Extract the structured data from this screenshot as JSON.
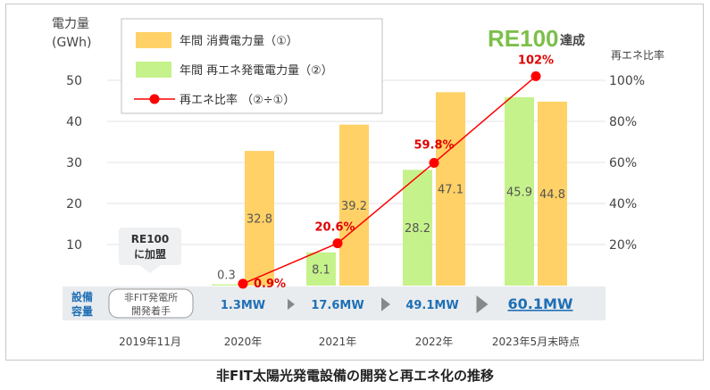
{
  "caption": "非FIT太陽光発電設備の開発と再エネ化の推移",
  "badge": {
    "logo": "RE100",
    "suffix": "達成"
  },
  "callout": {
    "line1": "RE100",
    "line2": "に加盟"
  },
  "legend": {
    "items": [
      {
        "label": "年間 消費電力量（①）",
        "kind": "bar",
        "color": "#ffd166"
      },
      {
        "label": "年間 再エネ発電電力量（②）",
        "kind": "bar",
        "color": "#c6f28c"
      },
      {
        "label": "再エネ比率 （②÷①）",
        "kind": "line",
        "color": "#ff0000"
      }
    ]
  },
  "capacity_strip": {
    "title_line1": "設備",
    "title_line2": "容量",
    "start_line1": "非FIT発電所",
    "start_line2": "開発着手",
    "values": [
      "1.3MW",
      "17.6MW",
      "49.1MW",
      "60.1MW"
    ]
  },
  "chart_data": {
    "type": "bar",
    "categories": [
      "2019年11月",
      "2020年",
      "2021年",
      "2022年",
      "2023年5月末時点"
    ],
    "left_axis": {
      "label_line1": "電力量",
      "label_line2": "(GWh)",
      "ylim": [
        0,
        50
      ],
      "ticks": [
        "10",
        "20",
        "30",
        "40",
        "50"
      ]
    },
    "right_axis": {
      "label": "再エネ比率",
      "ylim": [
        0,
        1.0
      ],
      "ticks": [
        "20%",
        "40%",
        "60%",
        "80%",
        "100%"
      ]
    },
    "series": [
      {
        "name": "年間 消費電力量（①）",
        "kind": "bar",
        "color": "#ffd166",
        "values": [
          null,
          32.8,
          39.2,
          47.1,
          44.8
        ],
        "labels": [
          null,
          "32.8",
          "39.2",
          "47.1",
          "44.8"
        ]
      },
      {
        "name": "年間 再エネ発電電力量（②）",
        "kind": "bar",
        "color": "#c6f28c",
        "values": [
          null,
          0.3,
          8.1,
          28.2,
          45.9
        ],
        "labels": [
          null,
          "0.3",
          "8.1",
          "28.2",
          "45.9"
        ]
      },
      {
        "name": "再エネ比率 （②÷①）",
        "kind": "line",
        "color": "#ff0000",
        "values": [
          null,
          0.009,
          0.206,
          0.598,
          1.02
        ],
        "labels": [
          null,
          "0.9%",
          "20.6%",
          "59.8%",
          "102%"
        ]
      }
    ],
    "grid": true,
    "legend_position": "top-left"
  }
}
